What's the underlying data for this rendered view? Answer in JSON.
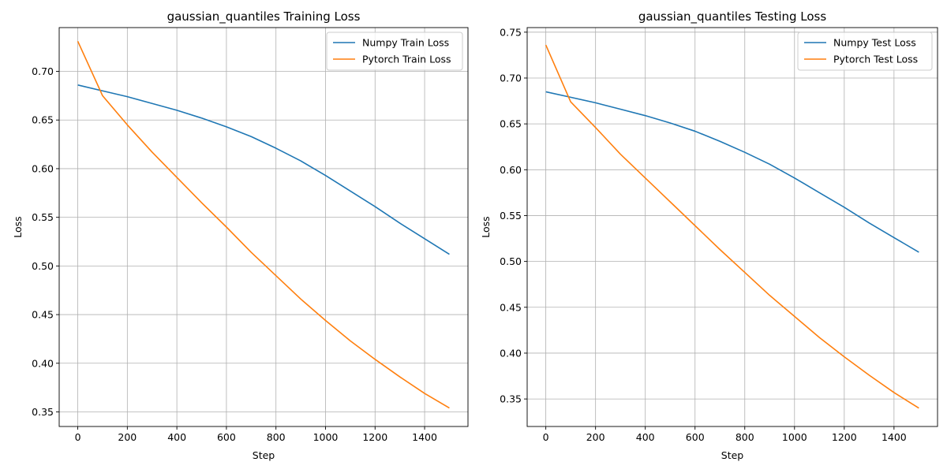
{
  "chart_data": [
    {
      "type": "line",
      "title": "gaussian_quantiles Training Loss",
      "xlabel": "Step",
      "ylabel": "Loss",
      "xlim": [
        -75,
        1575
      ],
      "ylim": [
        0.335,
        0.745
      ],
      "xticks": [
        0,
        200,
        400,
        600,
        800,
        1000,
        1200,
        1400
      ],
      "yticks": [
        0.35,
        0.4,
        0.45,
        0.5,
        0.55,
        0.6,
        0.65,
        0.7
      ],
      "grid": true,
      "legend_position": "top-right",
      "x": [
        0,
        100,
        200,
        300,
        400,
        500,
        600,
        700,
        800,
        900,
        1000,
        1100,
        1200,
        1300,
        1400,
        1500
      ],
      "series": [
        {
          "name": "Numpy Train Loss",
          "color": "#1f77b4",
          "values": [
            0.686,
            0.68,
            0.674,
            0.667,
            0.66,
            0.652,
            0.643,
            0.633,
            0.621,
            0.608,
            0.593,
            0.577,
            0.561,
            0.544,
            0.528,
            0.512
          ]
        },
        {
          "name": "Pytorch Train Loss",
          "color": "#ff7f0e",
          "values": [
            0.731,
            0.675,
            0.645,
            0.617,
            0.591,
            0.565,
            0.54,
            0.514,
            0.49,
            0.466,
            0.444,
            0.423,
            0.404,
            0.386,
            0.369,
            0.354
          ]
        }
      ]
    },
    {
      "type": "line",
      "title": "gaussian_quantiles Testing Loss",
      "xlabel": "Step",
      "ylabel": "Loss",
      "xlim": [
        -75,
        1575
      ],
      "ylim": [
        0.32,
        0.755
      ],
      "xticks": [
        0,
        200,
        400,
        600,
        800,
        1000,
        1200,
        1400
      ],
      "yticks": [
        0.35,
        0.4,
        0.45,
        0.5,
        0.55,
        0.6,
        0.65,
        0.7,
        0.75
      ],
      "grid": true,
      "legend_position": "top-right",
      "x": [
        0,
        100,
        200,
        300,
        400,
        500,
        600,
        700,
        800,
        900,
        1000,
        1100,
        1200,
        1300,
        1400,
        1500
      ],
      "series": [
        {
          "name": "Numpy Test Loss",
          "color": "#1f77b4",
          "values": [
            0.685,
            0.679,
            0.673,
            0.666,
            0.659,
            0.651,
            0.642,
            0.631,
            0.619,
            0.606,
            0.591,
            0.575,
            0.559,
            0.542,
            0.526,
            0.51
          ]
        },
        {
          "name": "Pytorch Test Loss",
          "color": "#ff7f0e",
          "values": [
            0.736,
            0.674,
            0.646,
            0.617,
            0.591,
            0.565,
            0.539,
            0.513,
            0.488,
            0.463,
            0.44,
            0.417,
            0.396,
            0.376,
            0.357,
            0.34
          ]
        }
      ]
    }
  ]
}
